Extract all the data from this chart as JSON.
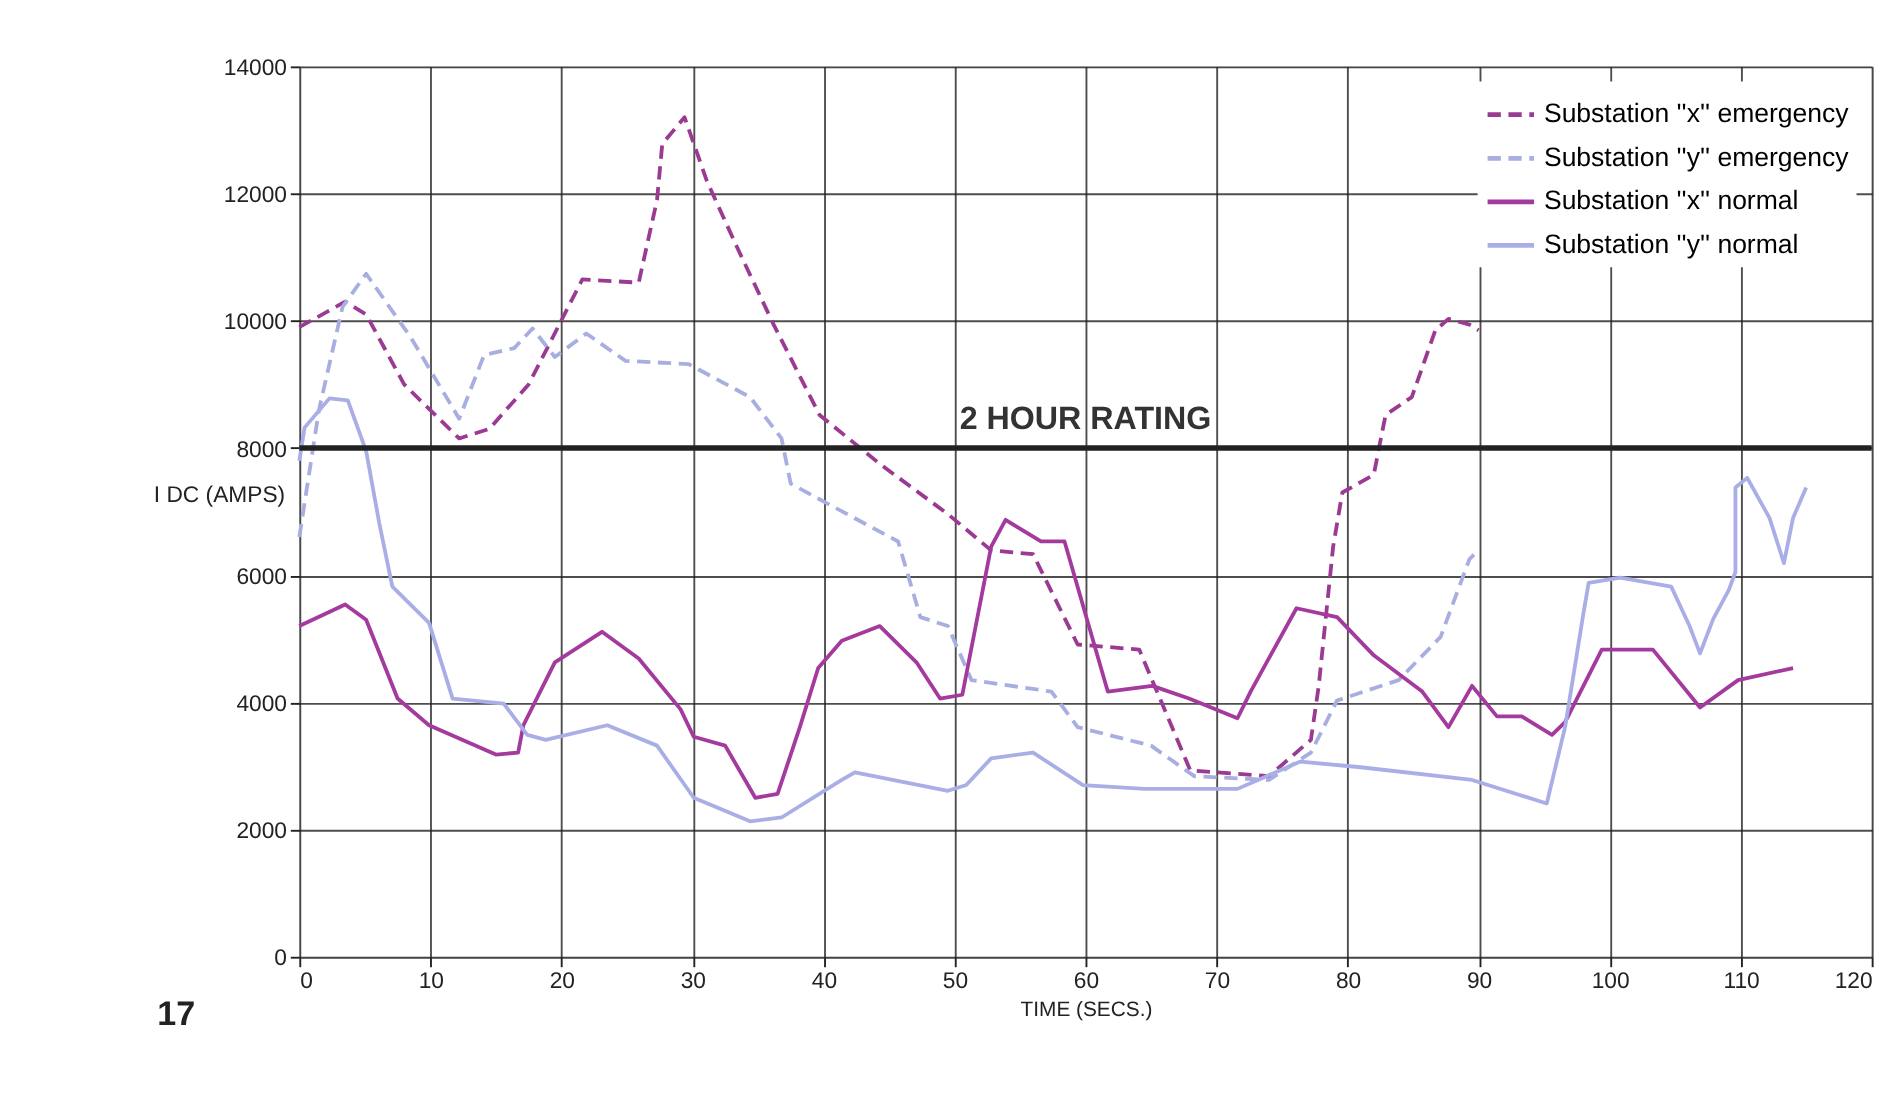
{
  "chart_data": {
    "type": "line",
    "xlabel": "TIME (SECS.)",
    "ylabel": "I DC (AMPS)",
    "xlim": [
      0,
      120
    ],
    "ylim": [
      0,
      14000
    ],
    "xticks": [
      0,
      10,
      20,
      30,
      40,
      50,
      60,
      70,
      80,
      90,
      100,
      110,
      120
    ],
    "yticks": [
      0,
      2000,
      4000,
      6000,
      8000,
      10000,
      12000,
      14000
    ],
    "grid": true,
    "legend": "top right",
    "marker": "none",
    "ref_lines": [
      {
        "axis": "y",
        "value": 8000,
        "label": "2 HOUR RATING",
        "color": "#222222",
        "line_style": "solid"
      }
    ],
    "annotations": [
      "17"
    ],
    "series": [
      {
        "name": "Substation ''x'' emergency",
        "color": "#9b3a93",
        "line_style": "dashed",
        "x": [
          0,
          3.5,
          5.1,
          8,
          12.2,
          14.5,
          17.5,
          21.6,
          25.9,
          27.3,
          27.7,
          29.4,
          31.1,
          33.4,
          36.2,
          39.7,
          44.3,
          49.5,
          52.8,
          56,
          59.4,
          64.1,
          68,
          74,
          77.2,
          77.8,
          78.9,
          79.6,
          82,
          82.9,
          84.9,
          86.7,
          87.7,
          89.3,
          90
        ],
        "values": [
          9900,
          10300,
          10100,
          9000,
          8150,
          8300,
          9000,
          10650,
          10600,
          11900,
          12780,
          13200,
          12200,
          11160,
          9940,
          8520,
          7750,
          6960,
          6390,
          6330,
          4910,
          4830,
          2930,
          2840,
          3410,
          4260,
          6450,
          7300,
          7580,
          8520,
          8800,
          9850,
          10030,
          9940,
          9850
        ]
      },
      {
        "name": "Substation ''y'' emergency",
        "color": "#a9aee0",
        "line_style": "dashed",
        "x": [
          0,
          1.5,
          3.3,
          5.1,
          8.5,
          12.2,
          14.1,
          16.4,
          17.8,
          19.5,
          21.9,
          24.9,
          29.7,
          34.4,
          36.8,
          37.5,
          40,
          45.7,
          47.4,
          49.5,
          51.3,
          57.4,
          59.4,
          65,
          68.3,
          74,
          77.2,
          79.2,
          83.9,
          87.1,
          89.3,
          90
        ],
        "values": [
          6600,
          8600,
          10220,
          10740,
          9740,
          8460,
          9460,
          9570,
          9880,
          9430,
          9800,
          9370,
          9320,
          8800,
          8150,
          7440,
          7160,
          6530,
          5340,
          5200,
          4350,
          4170,
          3610,
          3320,
          2840,
          2780,
          3210,
          4030,
          4350,
          5030,
          6250,
          6400
        ]
      },
      {
        "name": "Substation ''x'' normal",
        "color": "#a43a9e",
        "line_style": "solid",
        "x": [
          0,
          3.5,
          5.1,
          7.5,
          9.9,
          15,
          16.7,
          17.1,
          19.5,
          23.1,
          25.9,
          29.1,
          30.1,
          32.5,
          34.8,
          36.5,
          38.2,
          39.6,
          41.4,
          44.3,
          47.1,
          48.9,
          50.6,
          52.8,
          53.9,
          56.6,
          58.4,
          61.7,
          65.1,
          67.9,
          71.6,
          72.6,
          76.1,
          79.2,
          82,
          85.7,
          87.7,
          89.5,
          91.4,
          93.3,
          95.6,
          96.6,
          99.4,
          103.3,
          106.9,
          109.8,
          114
        ],
        "values": [
          5200,
          5540,
          5300,
          4060,
          3640,
          3180,
          3210,
          3640,
          4630,
          5110,
          4690,
          3890,
          3460,
          3320,
          2500,
          2560,
          3610,
          4540,
          4970,
          5200,
          4630,
          4060,
          4120,
          6450,
          6870,
          6530,
          6530,
          4170,
          4260,
          4060,
          3750,
          4170,
          5480,
          5340,
          4740,
          4170,
          3610,
          4260,
          3780,
          3780,
          3490,
          3690,
          4830,
          4830,
          3920,
          4350,
          4540
        ]
      },
      {
        "name": "Substation ''y'' normal",
        "color": "#a9aee6",
        "line_style": "solid",
        "x": [
          0,
          0.4,
          2.3,
          3.7,
          5.1,
          6.1,
          7.1,
          9.9,
          11.7,
          15.6,
          17.4,
          18.8,
          23.5,
          27.3,
          30.1,
          34.4,
          36.8,
          41.4,
          42.4,
          49.5,
          50.9,
          52.8,
          56,
          59.8,
          64.5,
          71.6,
          76.4,
          81,
          89.5,
          95.2,
          96.6,
          98,
          98.4,
          100.8,
          104.7,
          106.1,
          106.9,
          107.9,
          109.1,
          109.6,
          109.6,
          110.5,
          112.2,
          113.3,
          114,
          115
        ],
        "values": [
          7800,
          8320,
          8780,
          8750,
          7950,
          6820,
          5820,
          5250,
          4060,
          3980,
          3490,
          3410,
          3640,
          3320,
          2500,
          2130,
          2190,
          2780,
          2900,
          2610,
          2700,
          3120,
          3210,
          2700,
          2640,
          2640,
          3070,
          2980,
          2780,
          2410,
          3610,
          5400,
          5880,
          5960,
          5820,
          5200,
          4770,
          5310,
          5770,
          6050,
          7380,
          7530,
          6900,
          6190,
          6900,
          7380
        ]
      }
    ]
  }
}
